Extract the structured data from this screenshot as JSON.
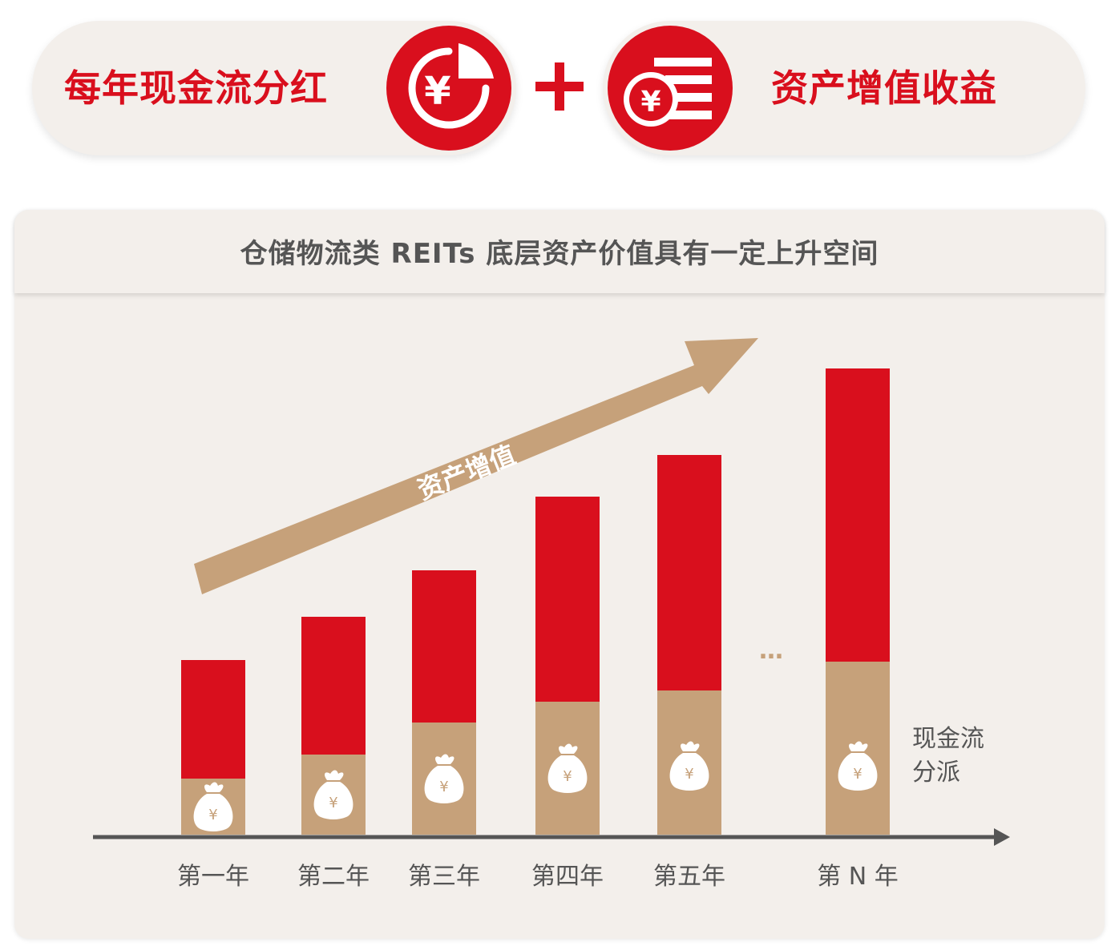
{
  "banner": {
    "left_label": "每年现金流分红",
    "right_label": "资产增值收益",
    "left_icon": "yen-pie-icon",
    "right_icon": "yen-coin-stack-icon",
    "plus_icon": "plus-icon"
  },
  "colors": {
    "red": "#d90f1d",
    "tan": "#c6a17a",
    "panel_bg": "#f3efeb",
    "axis": "#555555"
  },
  "chart_data": {
    "type": "bar",
    "title": "仓储物流类 REITs 底层资产价值具有一定上升空间",
    "categories": [
      "第一年",
      "第二年",
      "第三年",
      "第四年",
      "第五年",
      "第 N 年"
    ],
    "series": [
      {
        "name": "现金流\n分派",
        "values": [
          70,
          100,
          140,
          166,
          180,
          216
        ],
        "color": "#c6a17a",
        "icon": "money-bag-icon"
      },
      {
        "values": [
          148,
          172,
          190,
          256,
          294,
          366
        ],
        "color": "#d90f1d"
      }
    ],
    "stacked": true,
    "ylim": [
      0,
      600
    ],
    "gap_marker": "…",
    "trend_arrow_label": "资产增值",
    "series_label_lines": [
      "现金流",
      "分派"
    ],
    "legend": "none",
    "grid": false
  }
}
